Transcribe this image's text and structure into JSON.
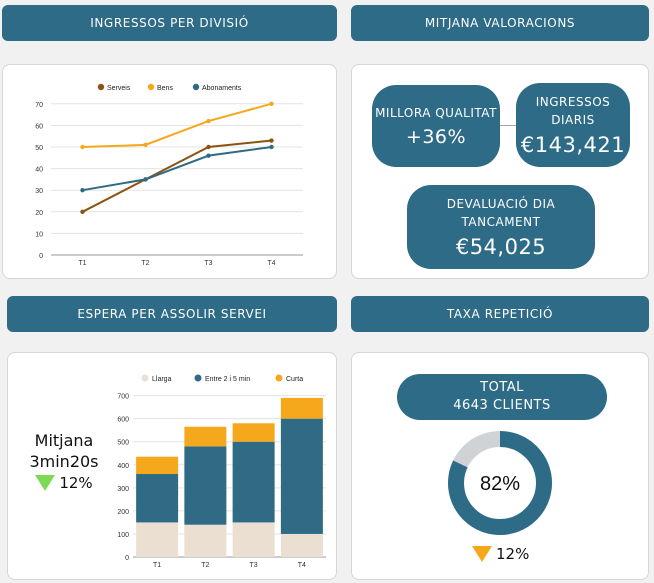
{
  "headers": {
    "top_left": "INGRESSOS PER DIVISIÓ",
    "top_right": "MITJANA VALORACIONS",
    "bottom_left": "ESPERA PER ASSOLIR SERVEI",
    "bottom_right": "TAXA REPETICIÓ"
  },
  "valoracions": {
    "millora_label": "MILLORA QUALITAT",
    "millora_value": "+36%",
    "ingressos_label_1": "INGRESSOS",
    "ingressos_label_2": "DIARIS",
    "ingressos_value": "€143,421",
    "devaluacio_label_1": "DEVALUACIÓ DIA",
    "devaluacio_label_2": "TANCAMENT",
    "devaluacio_value": "€54,025"
  },
  "espera": {
    "mitjana_label": "Mitjana",
    "mitjana_value": "3min20s",
    "change": "12%"
  },
  "repeticio": {
    "total_label": "TOTAL",
    "total_value": "4643 CLIENTS",
    "percent": 82,
    "percent_label": "82%",
    "change": "12%"
  },
  "colors": {
    "header_bg": "#2e6b87",
    "serveis": "#8a5312",
    "bens": "#f5a81c",
    "abonaments": "#2f6b85",
    "llarga": "#eadfd1",
    "entre": "#2f6b85",
    "curta": "#f5a81c",
    "down_green": "#7ed957",
    "down_orange": "#f5a81c",
    "donut_rest": "#cfd3d6"
  },
  "chart_data": [
    {
      "type": "line",
      "categories": [
        "T1",
        "T2",
        "T3",
        "T4"
      ],
      "series": [
        {
          "name": "Serveis",
          "values": [
            20,
            35,
            50,
            53
          ]
        },
        {
          "name": "Bens",
          "values": [
            50,
            51,
            62,
            70
          ]
        },
        {
          "name": "Abonaments",
          "values": [
            30,
            35,
            46,
            50
          ]
        }
      ],
      "yticks": [
        "0",
        "10",
        "20",
        "30",
        "40",
        "50",
        "60",
        "70"
      ],
      "ylim": [
        0,
        75
      ],
      "legend": "top"
    },
    {
      "type": "bar",
      "stacked": true,
      "categories": [
        "T1",
        "T2",
        "T3",
        "T4"
      ],
      "series": [
        {
          "name": "Llarga",
          "values": [
            150,
            140,
            150,
            100
          ]
        },
        {
          "name": "Entre 2 i 5 min",
          "values": [
            210,
            340,
            350,
            500
          ]
        },
        {
          "name": "Curta",
          "values": [
            75,
            85,
            80,
            90
          ]
        }
      ],
      "yticks": [
        "0",
        "100",
        "200",
        "300",
        "400",
        "500",
        "600",
        "700"
      ],
      "ylim": [
        0,
        720
      ],
      "legend": "top"
    }
  ]
}
